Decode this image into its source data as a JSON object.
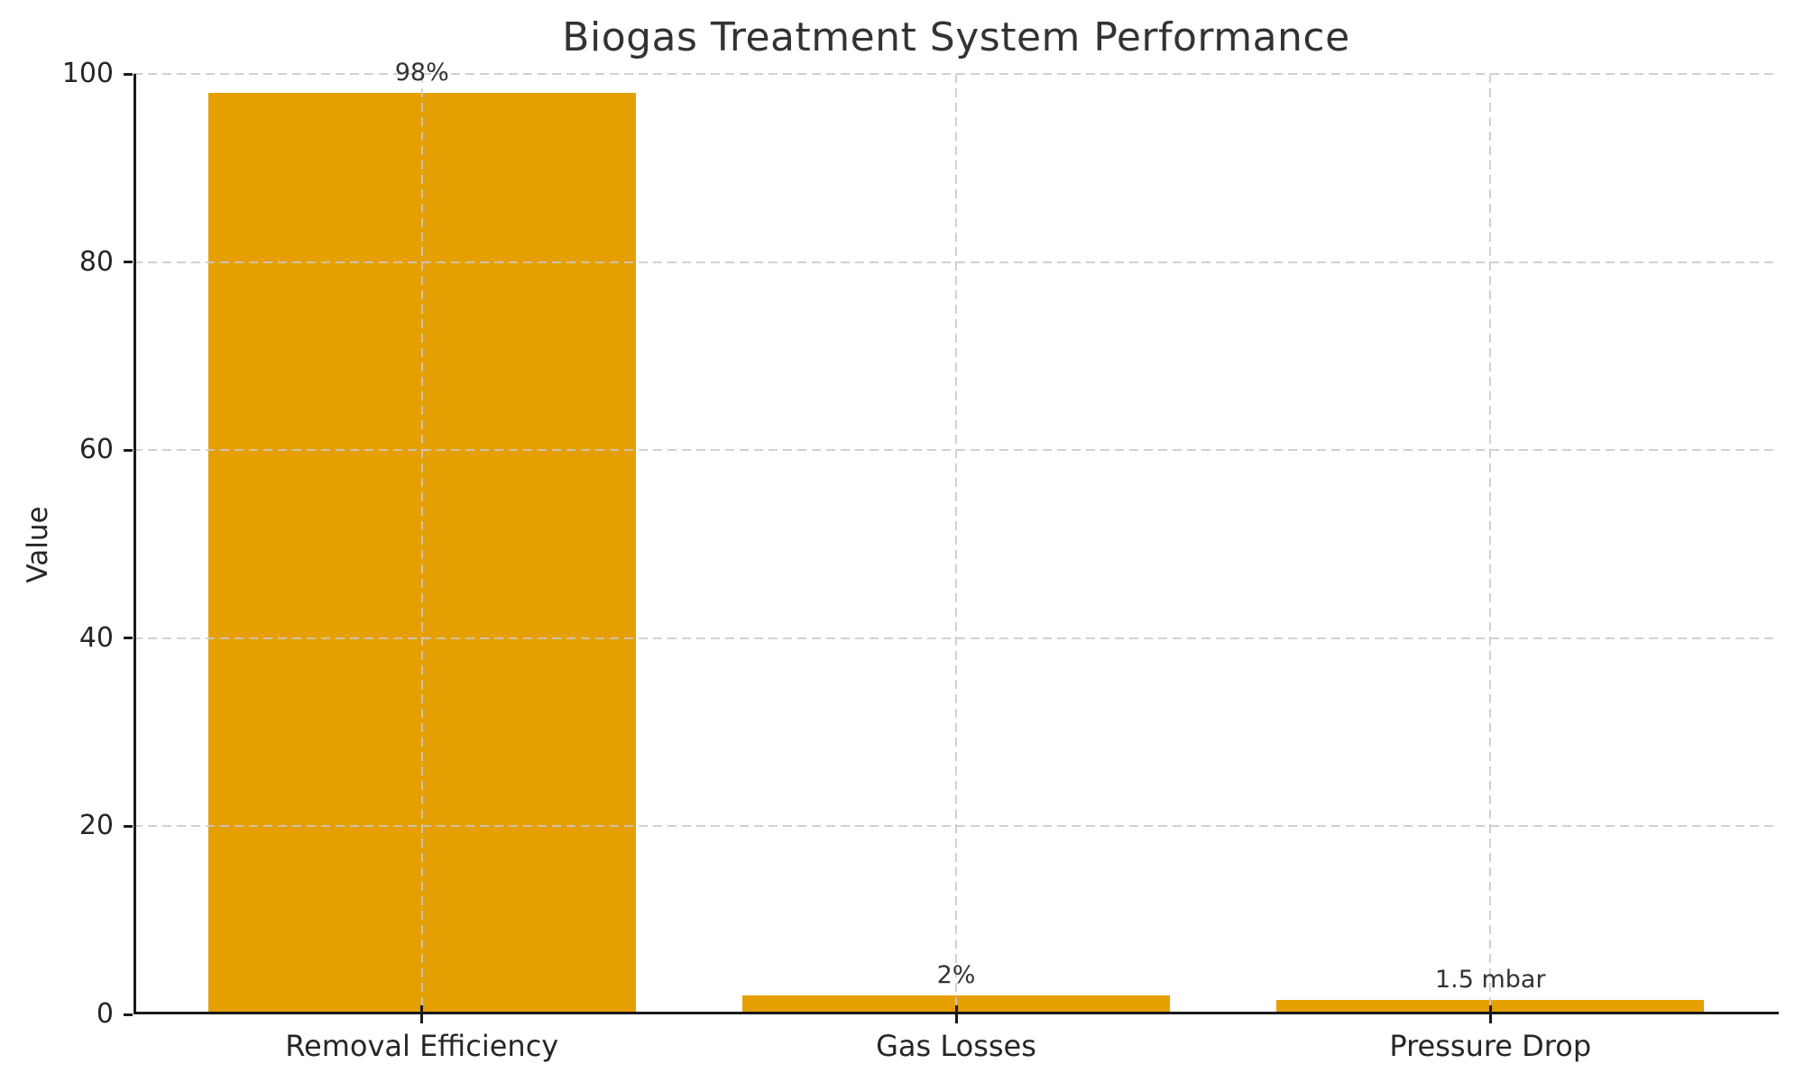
{
  "chart_data": {
    "type": "bar",
    "title": "Biogas Treatment System Performance",
    "xlabel": "",
    "ylabel": "Value",
    "categories": [
      "Removal Efficiency",
      "Gas Losses",
      "Pressure Drop"
    ],
    "values": [
      98,
      2,
      1.5
    ],
    "bar_labels": [
      "98%",
      "2%",
      "1.5 mbar"
    ],
    "ylim": [
      0,
      100
    ],
    "yticks": [
      0,
      20,
      40,
      60,
      80,
      100
    ],
    "bar_color": "#E69F00",
    "grid": {
      "style": "dashed",
      "color": "#c9c9c9",
      "axes": "both",
      "over_bars": true
    },
    "axis_color": "#1a1a1a",
    "text_color": "#262626",
    "title_color": "#333333",
    "legend": null
  }
}
